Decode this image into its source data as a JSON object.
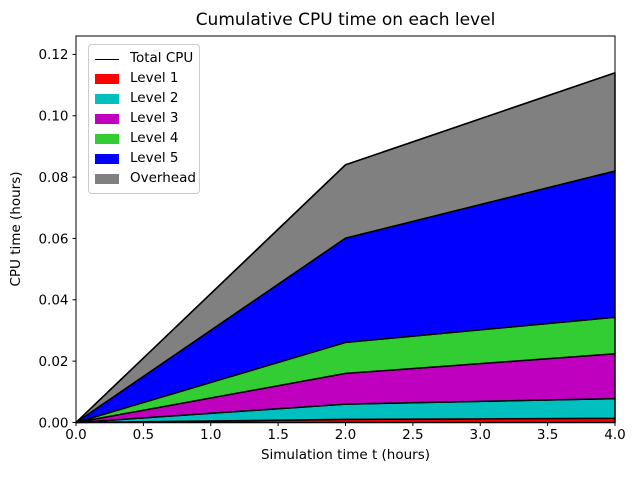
{
  "figure": {
    "background": "#ffffff"
  },
  "chart_data": {
    "type": "area",
    "stacked": true,
    "title": "Cumulative CPU time on each level",
    "xlabel": "Simulation time t (hours)",
    "ylabel": "CPU time (hours)",
    "x": [
      0,
      2,
      4
    ],
    "series": [
      {
        "name": "Level 1",
        "color": "#ff0000",
        "values": [
          0,
          0.001,
          0.0014
        ]
      },
      {
        "name": "Level 2",
        "color": "#00bfbf",
        "values": [
          0,
          0.005,
          0.0064
        ]
      },
      {
        "name": "Level 3",
        "color": "#bf00bf",
        "values": [
          0,
          0.01,
          0.0146
        ]
      },
      {
        "name": "Level 4",
        "color": "#32cd32",
        "values": [
          0,
          0.0101,
          0.0119
        ]
      },
      {
        "name": "Level 5",
        "color": "#0000ff",
        "values": [
          0,
          0.034,
          0.0477
        ]
      },
      {
        "name": "Overhead",
        "color": "#808080",
        "values": [
          0,
          0.0239,
          0.032
        ]
      }
    ],
    "total_line": {
      "name": "Total CPU",
      "color": "#000000",
      "values": [
        0,
        0.084,
        0.114
      ]
    },
    "xlim": [
      0,
      4
    ],
    "ylim": [
      0,
      0.126
    ],
    "xticks": {
      "values": [
        0,
        0.5,
        1.0,
        1.5,
        2.0,
        2.5,
        3.0,
        3.5,
        4.0
      ],
      "labels": [
        "0.0",
        "0.5",
        "1.0",
        "1.5",
        "2.0",
        "2.5",
        "3.0",
        "3.5",
        "4.0"
      ]
    },
    "yticks": {
      "values": [
        0,
        0.02,
        0.04,
        0.06,
        0.08,
        0.1,
        0.12
      ],
      "labels": [
        "0.00",
        "0.02",
        "0.04",
        "0.06",
        "0.08",
        "0.10",
        "0.12"
      ]
    },
    "grid": false,
    "legend_position": "upper left",
    "edge_color": "#000000",
    "edge_width": 1.5
  }
}
